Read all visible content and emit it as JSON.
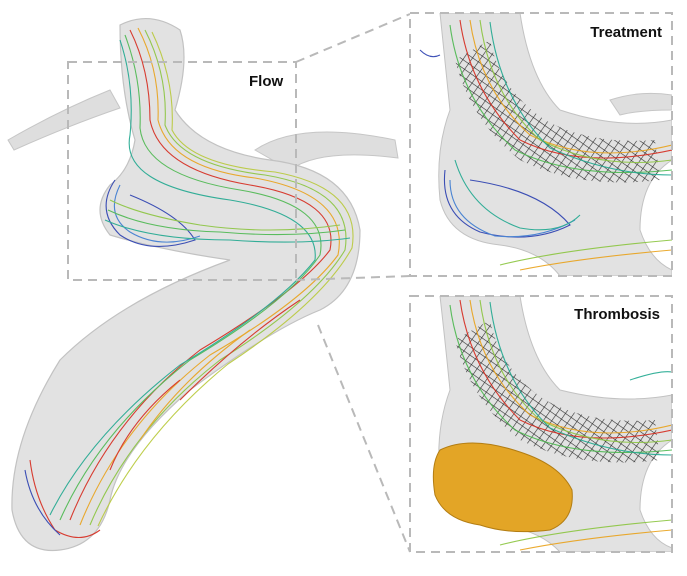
{
  "panels": {
    "flow": {
      "label": "Flow"
    },
    "treatment": {
      "label": "Treatment"
    },
    "thrombosis": {
      "label": "Thrombosis"
    }
  },
  "colors": {
    "vessel": "#dcdcdc",
    "vessel_edge": "#bcbcbc",
    "stent": "#1a1a1a",
    "thrombus": "#e3a526",
    "dashed_frame": "#b9b9b9"
  }
}
